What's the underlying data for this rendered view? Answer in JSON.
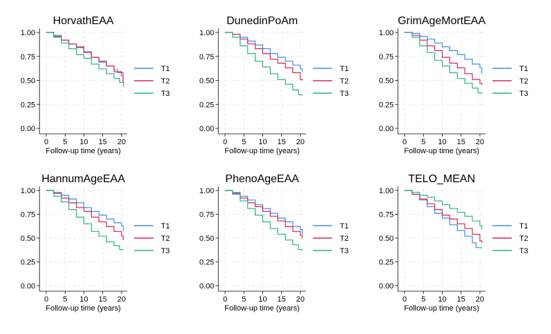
{
  "legend_colors": {
    "T1": "#3b8fe5",
    "T2": "#d6225a",
    "T3": "#24b383"
  },
  "chart_data": [
    {
      "type": "line",
      "title": "HorvathEAA",
      "xlabel": "Follow-up time (years)",
      "ylabel": "",
      "xlim": [
        0,
        21
      ],
      "ylim": [
        0,
        1
      ],
      "legend": "right",
      "xticks": [
        "0",
        "5",
        "10",
        "15",
        "20"
      ],
      "yticks": [
        "0.00",
        "0.25",
        "0.50",
        "0.75",
        "1.00"
      ],
      "series": [
        {
          "name": "T1",
          "color": "#3b8fe5",
          "points": [
            [
              0,
              1.0
            ],
            [
              2,
              0.97
            ],
            [
              4,
              0.92
            ],
            [
              6,
              0.88
            ],
            [
              8,
              0.84
            ],
            [
              10,
              0.8
            ],
            [
              12,
              0.74
            ],
            [
              14,
              0.69
            ],
            [
              16,
              0.65
            ],
            [
              18,
              0.61
            ],
            [
              19,
              0.58
            ],
            [
              20.5,
              0.56
            ]
          ]
        },
        {
          "name": "T2",
          "color": "#d6225a",
          "points": [
            [
              0,
              1.0
            ],
            [
              2,
              0.96
            ],
            [
              4,
              0.92
            ],
            [
              6,
              0.88
            ],
            [
              8,
              0.85
            ],
            [
              10,
              0.79
            ],
            [
              12,
              0.74
            ],
            [
              14,
              0.7
            ],
            [
              16,
              0.65
            ],
            [
              18,
              0.59
            ],
            [
              20,
              0.55
            ],
            [
              20.4,
              0.48
            ]
          ]
        },
        {
          "name": "T3",
          "color": "#24b383",
          "points": [
            [
              0,
              1.0
            ],
            [
              2,
              0.95
            ],
            [
              4,
              0.89
            ],
            [
              6,
              0.83
            ],
            [
              8,
              0.77
            ],
            [
              10,
              0.73
            ],
            [
              12,
              0.67
            ],
            [
              14,
              0.62
            ],
            [
              16,
              0.57
            ],
            [
              18,
              0.52
            ],
            [
              19.5,
              0.48
            ],
            [
              20.5,
              0.43
            ]
          ]
        }
      ]
    },
    {
      "type": "line",
      "title": "DunedinPoAm",
      "xlabel": "Follow-up time (years)",
      "ylabel": "",
      "xlim": [
        0,
        21
      ],
      "ylim": [
        0,
        1
      ],
      "legend": "right",
      "xticks": [
        "0",
        "5",
        "10",
        "15",
        "20"
      ],
      "yticks": [
        "0.00",
        "0.25",
        "0.50",
        "0.75",
        "1.00"
      ],
      "series": [
        {
          "name": "T1",
          "color": "#3b8fe5",
          "points": [
            [
              0,
              1.0
            ],
            [
              2,
              0.98
            ],
            [
              4,
              0.95
            ],
            [
              6,
              0.91
            ],
            [
              8,
              0.87
            ],
            [
              10,
              0.83
            ],
            [
              12,
              0.78
            ],
            [
              14,
              0.74
            ],
            [
              16,
              0.7
            ],
            [
              18,
              0.66
            ],
            [
              20,
              0.62
            ],
            [
              20.5,
              0.59
            ]
          ]
        },
        {
          "name": "T2",
          "color": "#d6225a",
          "points": [
            [
              0,
              1.0
            ],
            [
              2,
              0.98
            ],
            [
              4,
              0.93
            ],
            [
              6,
              0.88
            ],
            [
              8,
              0.83
            ],
            [
              10,
              0.78
            ],
            [
              12,
              0.72
            ],
            [
              14,
              0.68
            ],
            [
              16,
              0.63
            ],
            [
              18,
              0.58
            ],
            [
              20,
              0.51
            ],
            [
              20.5,
              0.5
            ]
          ]
        },
        {
          "name": "T3",
          "color": "#24b383",
          "points": [
            [
              0,
              1.0
            ],
            [
              2,
              0.95
            ],
            [
              4,
              0.86
            ],
            [
              6,
              0.78
            ],
            [
              8,
              0.7
            ],
            [
              10,
              0.64
            ],
            [
              12,
              0.57
            ],
            [
              14,
              0.51
            ],
            [
              16,
              0.46
            ],
            [
              18,
              0.4
            ],
            [
              19.5,
              0.35
            ],
            [
              20.5,
              0.34
            ]
          ]
        }
      ]
    },
    {
      "type": "line",
      "title": "GrimAgeMortEAA",
      "xlabel": "Follow-up time (years)",
      "ylabel": "",
      "xlim": [
        0,
        21
      ],
      "ylim": [
        0,
        1
      ],
      "legend": "right",
      "xticks": [
        "0",
        "5",
        "10",
        "15",
        "20"
      ],
      "yticks": [
        "0.00",
        "0.25",
        "0.50",
        "0.75",
        "1.00"
      ],
      "series": [
        {
          "name": "T1",
          "color": "#3b8fe5",
          "points": [
            [
              0,
              1.0
            ],
            [
              2,
              0.99
            ],
            [
              4,
              0.96
            ],
            [
              6,
              0.93
            ],
            [
              8,
              0.89
            ],
            [
              10,
              0.85
            ],
            [
              12,
              0.81
            ],
            [
              14,
              0.77
            ],
            [
              16,
              0.72
            ],
            [
              18,
              0.67
            ],
            [
              20,
              0.63
            ],
            [
              20.5,
              0.57
            ]
          ]
        },
        {
          "name": "T2",
          "color": "#d6225a",
          "points": [
            [
              0,
              1.0
            ],
            [
              2,
              0.97
            ],
            [
              4,
              0.92
            ],
            [
              6,
              0.86
            ],
            [
              8,
              0.81
            ],
            [
              10,
              0.74
            ],
            [
              12,
              0.68
            ],
            [
              14,
              0.63
            ],
            [
              16,
              0.57
            ],
            [
              18,
              0.51
            ],
            [
              20,
              0.47
            ],
            [
              20.5,
              0.45
            ]
          ]
        },
        {
          "name": "T3",
          "color": "#24b383",
          "points": [
            [
              0,
              1.0
            ],
            [
              2,
              0.95
            ],
            [
              4,
              0.86
            ],
            [
              6,
              0.79
            ],
            [
              8,
              0.71
            ],
            [
              10,
              0.65
            ],
            [
              12,
              0.58
            ],
            [
              14,
              0.52
            ],
            [
              16,
              0.47
            ],
            [
              18,
              0.42
            ],
            [
              19.5,
              0.37
            ],
            [
              20.5,
              0.36
            ]
          ]
        }
      ]
    },
    {
      "type": "line",
      "title": "HannumAgeEAA",
      "xlabel": "Follow-up time (years)",
      "ylabel": "",
      "xlim": [
        0,
        21
      ],
      "ylim": [
        0,
        1
      ],
      "legend": "right",
      "xticks": [
        "0",
        "5",
        "10",
        "15",
        "20"
      ],
      "yticks": [
        "0.00",
        "0.25",
        "0.50",
        "0.75",
        "1.00"
      ],
      "series": [
        {
          "name": "T1",
          "color": "#3b8fe5",
          "points": [
            [
              0,
              1.0
            ],
            [
              2,
              0.98
            ],
            [
              4,
              0.95
            ],
            [
              6,
              0.91
            ],
            [
              8,
              0.87
            ],
            [
              10,
              0.82
            ],
            [
              12,
              0.78
            ],
            [
              14,
              0.74
            ],
            [
              16,
              0.7
            ],
            [
              18,
              0.66
            ],
            [
              20,
              0.63
            ],
            [
              20.5,
              0.57
            ]
          ]
        },
        {
          "name": "T2",
          "color": "#d6225a",
          "points": [
            [
              0,
              1.0
            ],
            [
              2,
              0.97
            ],
            [
              4,
              0.92
            ],
            [
              6,
              0.87
            ],
            [
              8,
              0.82
            ],
            [
              10,
              0.78
            ],
            [
              12,
              0.72
            ],
            [
              14,
              0.67
            ],
            [
              16,
              0.62
            ],
            [
              18,
              0.57
            ],
            [
              20,
              0.52
            ],
            [
              20.5,
              0.48
            ]
          ]
        },
        {
          "name": "T3",
          "color": "#24b383",
          "points": [
            [
              0,
              1.0
            ],
            [
              2,
              0.94
            ],
            [
              4,
              0.88
            ],
            [
              6,
              0.8
            ],
            [
              8,
              0.72
            ],
            [
              10,
              0.65
            ],
            [
              12,
              0.57
            ],
            [
              14,
              0.52
            ],
            [
              16,
              0.46
            ],
            [
              18,
              0.42
            ],
            [
              19.5,
              0.38
            ],
            [
              20.5,
              0.38
            ]
          ]
        }
      ]
    },
    {
      "type": "line",
      "title": "PhenoAgeEAA",
      "xlabel": "Follow-up time (years)",
      "ylabel": "",
      "xlim": [
        0,
        21
      ],
      "ylim": [
        0,
        1
      ],
      "legend": "right",
      "xticks": [
        "0",
        "5",
        "10",
        "15",
        "20"
      ],
      "yticks": [
        "0.00",
        "0.25",
        "0.50",
        "0.75",
        "1.00"
      ],
      "series": [
        {
          "name": "T1",
          "color": "#3b8fe5",
          "points": [
            [
              0,
              1.0
            ],
            [
              2,
              0.98
            ],
            [
              4,
              0.94
            ],
            [
              6,
              0.9
            ],
            [
              8,
              0.85
            ],
            [
              10,
              0.81
            ],
            [
              12,
              0.76
            ],
            [
              14,
              0.71
            ],
            [
              16,
              0.67
            ],
            [
              18,
              0.62
            ],
            [
              20,
              0.59
            ],
            [
              20.5,
              0.54
            ]
          ]
        },
        {
          "name": "T2",
          "color": "#d6225a",
          "points": [
            [
              0,
              1.0
            ],
            [
              2,
              0.97
            ],
            [
              4,
              0.92
            ],
            [
              6,
              0.87
            ],
            [
              8,
              0.83
            ],
            [
              10,
              0.78
            ],
            [
              12,
              0.73
            ],
            [
              14,
              0.68
            ],
            [
              16,
              0.62
            ],
            [
              18,
              0.57
            ],
            [
              20,
              0.53
            ],
            [
              20.5,
              0.5
            ]
          ]
        },
        {
          "name": "T3",
          "color": "#24b383",
          "points": [
            [
              0,
              1.0
            ],
            [
              2,
              0.96
            ],
            [
              4,
              0.89
            ],
            [
              6,
              0.81
            ],
            [
              8,
              0.74
            ],
            [
              10,
              0.67
            ],
            [
              12,
              0.6
            ],
            [
              14,
              0.54
            ],
            [
              16,
              0.48
            ],
            [
              18,
              0.43
            ],
            [
              19.5,
              0.38
            ],
            [
              20.5,
              0.37
            ]
          ]
        }
      ]
    },
    {
      "type": "line",
      "title": "TELO_MEAN",
      "xlabel": "Follow-up time (years)",
      "ylabel": "",
      "xlim": [
        0,
        21
      ],
      "ylim": [
        0,
        1
      ],
      "legend": "right",
      "xticks": [
        "0",
        "5",
        "10",
        "15",
        "20"
      ],
      "yticks": [
        "0.00",
        "0.25",
        "0.50",
        "0.75",
        "1.00"
      ],
      "series": [
        {
          "name": "T1",
          "color": "#3b8fe5",
          "points": [
            [
              0,
              1.0
            ],
            [
              2,
              0.96
            ],
            [
              4,
              0.9
            ],
            [
              6,
              0.83
            ],
            [
              8,
              0.76
            ],
            [
              10,
              0.71
            ],
            [
              12,
              0.64
            ],
            [
              14,
              0.58
            ],
            [
              16,
              0.52
            ],
            [
              18,
              0.45
            ],
            [
              19,
              0.4
            ],
            [
              20.5,
              0.39
            ]
          ]
        },
        {
          "name": "T2",
          "color": "#d6225a",
          "points": [
            [
              0,
              1.0
            ],
            [
              2,
              0.96
            ],
            [
              4,
              0.91
            ],
            [
              6,
              0.86
            ],
            [
              8,
              0.8
            ],
            [
              10,
              0.74
            ],
            [
              12,
              0.7
            ],
            [
              14,
              0.65
            ],
            [
              16,
              0.6
            ],
            [
              18,
              0.54
            ],
            [
              20,
              0.47
            ],
            [
              20.5,
              0.45
            ]
          ]
        },
        {
          "name": "T3",
          "color": "#24b383",
          "points": [
            [
              0,
              1.0
            ],
            [
              2,
              0.98
            ],
            [
              4,
              0.95
            ],
            [
              6,
              0.93
            ],
            [
              8,
              0.89
            ],
            [
              10,
              0.85
            ],
            [
              12,
              0.81
            ],
            [
              14,
              0.77
            ],
            [
              16,
              0.73
            ],
            [
              18,
              0.68
            ],
            [
              20,
              0.63
            ],
            [
              20.5,
              0.59
            ]
          ]
        }
      ]
    }
  ]
}
